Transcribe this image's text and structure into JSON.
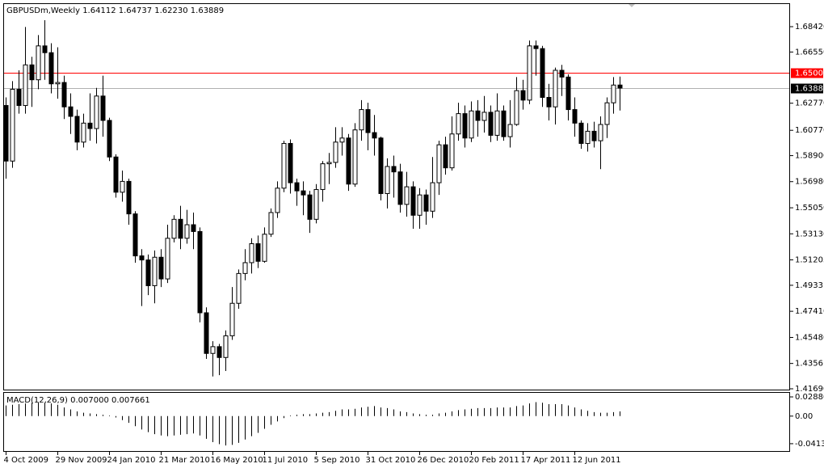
{
  "chart_data": {
    "type": "candlestick",
    "title": "GBPUSDm,Weekly  1.64112 1.64737 1.62230 1.63889",
    "categories": [
      "4 Oct 2009",
      null,
      null,
      null,
      null,
      null,
      null,
      null,
      "29 Nov 2009",
      null,
      null,
      null,
      null,
      null,
      null,
      null,
      "24 Jan 2010",
      null,
      null,
      null,
      null,
      null,
      null,
      null,
      "21 Mar 2010",
      null,
      null,
      null,
      null,
      null,
      null,
      null,
      "16 May 2010",
      null,
      null,
      null,
      null,
      null,
      null,
      null,
      "11 Jul 2010",
      null,
      null,
      null,
      null,
      null,
      null,
      null,
      "5 Sep 2010",
      null,
      null,
      null,
      null,
      null,
      null,
      null,
      "31 Oct 2010",
      null,
      null,
      null,
      null,
      null,
      null,
      null,
      "26 Dec 2010",
      null,
      null,
      null,
      null,
      null,
      null,
      null,
      "20 Feb 2011",
      null,
      null,
      null,
      null,
      null,
      null,
      null,
      "17 Apr 2011",
      null,
      null,
      null,
      null,
      null,
      null,
      null,
      "12 Jun 2011",
      null,
      null,
      null,
      null,
      null,
      null,
      null
    ],
    "ohlc": [
      [
        1.626,
        1.632,
        1.572,
        1.585
      ],
      [
        1.585,
        1.644,
        1.58,
        1.638
      ],
      [
        1.638,
        1.652,
        1.62,
        1.626
      ],
      [
        1.626,
        1.684,
        1.62,
        1.656
      ],
      [
        1.656,
        1.662,
        1.625,
        1.645
      ],
      [
        1.645,
        1.678,
        1.638,
        1.67
      ],
      [
        1.67,
        1.689,
        1.645,
        1.665
      ],
      [
        1.665,
        1.672,
        1.635,
        1.642
      ],
      [
        1.642,
        1.669,
        1.631,
        1.643
      ],
      [
        1.643,
        1.648,
        1.616,
        1.625
      ],
      [
        1.625,
        1.635,
        1.605,
        1.618
      ],
      [
        1.618,
        1.623,
        1.593,
        1.599
      ],
      [
        1.599,
        1.62,
        1.595,
        1.613
      ],
      [
        1.613,
        1.635,
        1.6,
        1.609
      ],
      [
        1.609,
        1.639,
        1.598,
        1.633
      ],
      [
        1.633,
        1.648,
        1.603,
        1.615
      ],
      [
        1.615,
        1.617,
        1.585,
        1.588
      ],
      [
        1.588,
        1.59,
        1.558,
        1.562
      ],
      [
        1.562,
        1.578,
        1.555,
        1.57
      ],
      [
        1.57,
        1.572,
        1.538,
        1.546
      ],
      [
        1.546,
        1.548,
        1.51,
        1.515
      ],
      [
        1.515,
        1.52,
        1.478,
        1.512
      ],
      [
        1.512,
        1.516,
        1.486,
        1.493
      ],
      [
        1.493,
        1.519,
        1.48,
        1.514
      ],
      [
        1.514,
        1.52,
        1.492,
        1.498
      ],
      [
        1.498,
        1.538,
        1.495,
        1.528
      ],
      [
        1.528,
        1.545,
        1.525,
        1.542
      ],
      [
        1.542,
        1.552,
        1.52,
        1.528
      ],
      [
        1.528,
        1.549,
        1.524,
        1.538
      ],
      [
        1.538,
        1.547,
        1.52,
        1.533
      ],
      [
        1.533,
        1.536,
        1.466,
        1.473
      ],
      [
        1.473,
        1.477,
        1.439,
        1.443
      ],
      [
        1.443,
        1.452,
        1.426,
        1.448
      ],
      [
        1.448,
        1.45,
        1.427,
        1.44
      ],
      [
        1.44,
        1.46,
        1.43,
        1.456
      ],
      [
        1.456,
        1.492,
        1.453,
        1.48
      ],
      [
        1.48,
        1.505,
        1.476,
        1.502
      ],
      [
        1.502,
        1.52,
        1.497,
        1.51
      ],
      [
        1.51,
        1.528,
        1.502,
        1.524
      ],
      [
        1.524,
        1.53,
        1.506,
        1.511
      ],
      [
        1.511,
        1.536,
        1.51,
        1.531
      ],
      [
        1.531,
        1.55,
        1.529,
        1.547
      ],
      [
        1.547,
        1.57,
        1.543,
        1.565
      ],
      [
        1.565,
        1.6,
        1.562,
        1.598
      ],
      [
        1.598,
        1.601,
        1.561,
        1.569
      ],
      [
        1.569,
        1.572,
        1.552,
        1.563
      ],
      [
        1.563,
        1.57,
        1.545,
        1.56
      ],
      [
        1.56,
        1.563,
        1.532,
        1.542
      ],
      [
        1.542,
        1.568,
        1.539,
        1.564
      ],
      [
        1.564,
        1.585,
        1.555,
        1.583
      ],
      [
        1.583,
        1.591,
        1.568,
        1.584
      ],
      [
        1.584,
        1.61,
        1.58,
        1.599
      ],
      [
        1.599,
        1.61,
        1.589,
        1.602
      ],
      [
        1.602,
        1.605,
        1.563,
        1.568
      ],
      [
        1.568,
        1.613,
        1.566,
        1.608
      ],
      [
        1.608,
        1.63,
        1.6,
        1.623
      ],
      [
        1.623,
        1.628,
        1.593,
        1.606
      ],
      [
        1.606,
        1.619,
        1.589,
        1.602
      ],
      [
        1.602,
        1.603,
        1.556,
        1.561
      ],
      [
        1.561,
        1.587,
        1.55,
        1.581
      ],
      [
        1.581,
        1.589,
        1.558,
        1.577
      ],
      [
        1.577,
        1.583,
        1.547,
        1.553
      ],
      [
        1.553,
        1.577,
        1.544,
        1.566
      ],
      [
        1.566,
        1.57,
        1.535,
        1.545
      ],
      [
        1.545,
        1.565,
        1.535,
        1.56
      ],
      [
        1.56,
        1.564,
        1.538,
        1.548
      ],
      [
        1.548,
        1.588,
        1.543,
        1.569
      ],
      [
        1.569,
        1.6,
        1.56,
        1.597
      ],
      [
        1.597,
        1.603,
        1.575,
        1.58
      ],
      [
        1.58,
        1.618,
        1.578,
        1.605
      ],
      [
        1.605,
        1.628,
        1.6,
        1.62
      ],
      [
        1.62,
        1.626,
        1.595,
        1.602
      ],
      [
        1.602,
        1.629,
        1.599,
        1.622
      ],
      [
        1.622,
        1.63,
        1.603,
        1.615
      ],
      [
        1.615,
        1.633,
        1.606,
        1.621
      ],
      [
        1.621,
        1.626,
        1.599,
        1.604
      ],
      [
        1.604,
        1.635,
        1.6,
        1.622
      ],
      [
        1.622,
        1.626,
        1.6,
        1.603
      ],
      [
        1.603,
        1.63,
        1.595,
        1.612
      ],
      [
        1.612,
        1.647,
        1.611,
        1.637
      ],
      [
        1.637,
        1.645,
        1.623,
        1.63
      ],
      [
        1.63,
        1.674,
        1.627,
        1.67
      ],
      [
        1.67,
        1.674,
        1.648,
        1.668
      ],
      [
        1.668,
        1.67,
        1.625,
        1.632
      ],
      [
        1.632,
        1.642,
        1.615,
        1.625
      ],
      [
        1.625,
        1.654,
        1.612,
        1.652
      ],
      [
        1.652,
        1.656,
        1.633,
        1.647
      ],
      [
        1.647,
        1.649,
        1.615,
        1.623
      ],
      [
        1.623,
        1.632,
        1.603,
        1.613
      ],
      [
        1.613,
        1.615,
        1.594,
        1.598
      ],
      [
        1.598,
        1.613,
        1.592,
        1.607
      ],
      [
        1.607,
        1.614,
        1.595,
        1.6
      ],
      [
        1.6,
        1.618,
        1.579,
        1.612
      ],
      [
        1.612,
        1.632,
        1.602,
        1.628
      ],
      [
        1.628,
        1.647,
        1.62,
        1.6411
      ],
      [
        1.64112,
        1.64737,
        1.6223,
        1.63889
      ]
    ],
    "ylim": [
      1.4163,
      1.7015
    ],
    "yticks": [
      {
        "value": 1.6842,
        "label": "1.68420"
      },
      {
        "value": 1.6655,
        "label": "1.66550"
      },
      {
        "value": 1.6277,
        "label": "1.62770"
      },
      {
        "value": 1.6077,
        "label": "1.60770"
      },
      {
        "value": 1.589,
        "label": "1.58900"
      },
      {
        "value": 1.5698,
        "label": "1.56980"
      },
      {
        "value": 1.5505,
        "label": "1.55050"
      },
      {
        "value": 1.5313,
        "label": "1.53130"
      },
      1.51205,
      1.4933,
      {
        "value": 1.4741,
        "label": "1.47410"
      },
      {
        "value": 1.4548,
        "label": "1.45480"
      },
      1.4356,
      {
        "value": 1.4169,
        "label": "1.41690"
      }
    ],
    "level": {
      "value": 1.65,
      "label": "1.65000",
      "color": "#ff0000"
    },
    "current_price": 1.63889,
    "bull_color": "#ffffff",
    "bear_color": "#000000",
    "macd": {
      "label": "MACD(12,26,9) 0.007000 0.007661",
      "values": [
        0.016,
        0.017,
        0.018,
        0.019,
        0.02,
        0.021,
        0.02,
        0.019,
        0.017,
        0.013,
        0.01,
        0.007,
        0.005,
        0.004,
        0.003,
        0.002,
        0.001,
        -0.002,
        -0.006,
        -0.01,
        -0.015,
        -0.02,
        -0.024,
        -0.027,
        -0.029,
        -0.03,
        -0.029,
        -0.028,
        -0.027,
        -0.026,
        -0.029,
        -0.034,
        -0.039,
        -0.042,
        -0.044,
        -0.043,
        -0.04,
        -0.035,
        -0.03,
        -0.025,
        -0.019,
        -0.013,
        -0.008,
        -0.003,
        0.001,
        0.002,
        0.003,
        0.003,
        0.004,
        0.005,
        0.006,
        0.008,
        0.01,
        0.01,
        0.011,
        0.013,
        0.014,
        0.015,
        0.013,
        0.012,
        0.01,
        0.007,
        0.006,
        0.004,
        0.003,
        0.002,
        0.002,
        0.004,
        0.005,
        0.007,
        0.009,
        0.01,
        0.011,
        0.012,
        0.012,
        0.012,
        0.013,
        0.013,
        0.013,
        0.015,
        0.016,
        0.019,
        0.021,
        0.02,
        0.018,
        0.018,
        0.018,
        0.016,
        0.013,
        0.01,
        0.008,
        0.006,
        0.005,
        0.005,
        0.006,
        0.007
      ],
      "ylim": [
        -0.0523,
        0.0361
      ],
      "yticks": [
        0.028805,
        {
          "value": 0,
          "label": "0.00"
        },
        -0.04131
      ]
    }
  }
}
